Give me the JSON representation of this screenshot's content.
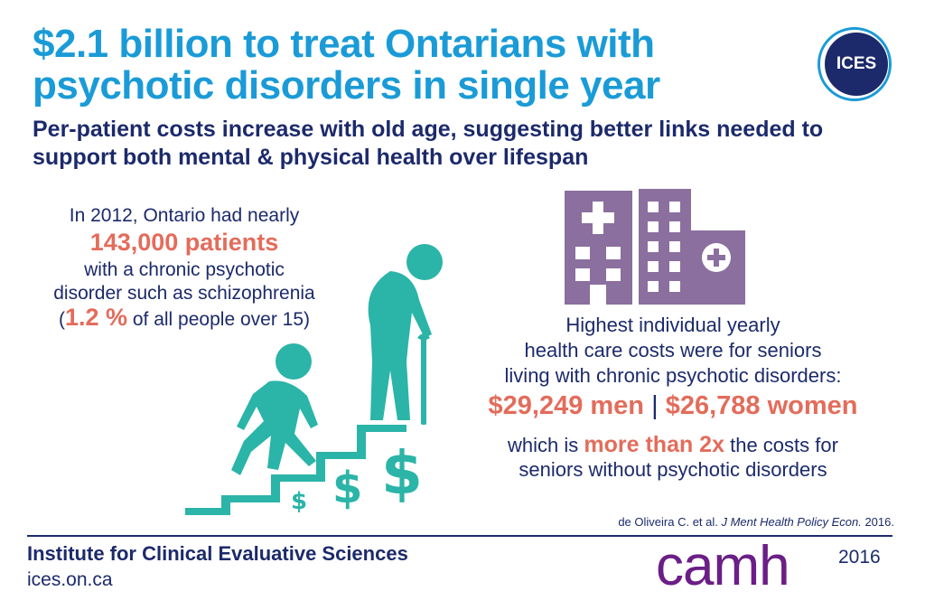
{
  "title": "$2.1 billion to treat Ontarians with psychotic disorders in single year",
  "subtitle": "Per-patient costs increase with old age, suggesting better links needed to support both mental & physical health over lifespan",
  "logo": {
    "text": "ICES"
  },
  "left_stat": {
    "line1": "In 2012, Ontario had nearly",
    "highlight": "143,000 patients",
    "line2": "with a chronic psychotic",
    "line3": "disorder such as schizophrenia",
    "line4_open": "(",
    "line4_highlight": "1.2 %",
    "line4_rest": " of all people over 15)"
  },
  "right_stat": {
    "line1": "Highest individual yearly",
    "line2": "health care costs were for seniors",
    "line3": "living with chronic psychotic disorders:",
    "men_cost": "$29,249 men",
    "separator": "|",
    "women_cost": "$26,788 women",
    "line4_pre": "which is ",
    "line4_highlight": "more than 2x",
    "line4_post": " the costs for",
    "line5": "seniors without psychotic disorders"
  },
  "citation": {
    "authors": "de Oliveira C. et al. ",
    "journal": "J Ment Health Policy Econ.",
    "year": " 2016."
  },
  "footer": {
    "org": "Institute for Clinical Evaluative Sciences",
    "url": "ices.on.ca",
    "partner": "camh",
    "year": "2016"
  },
  "icons": {
    "stairs": "stairs-people-dollar-icon",
    "hospital": "hospital-buildings-icon"
  },
  "colors": {
    "title_blue": "#1a9bd7",
    "navy": "#1c2a6b",
    "highlight_coral": "#e36c5b",
    "teal": "#2bb4a8",
    "purple_building": "#8b6f9e",
    "camh_purple": "#6b1e86"
  }
}
